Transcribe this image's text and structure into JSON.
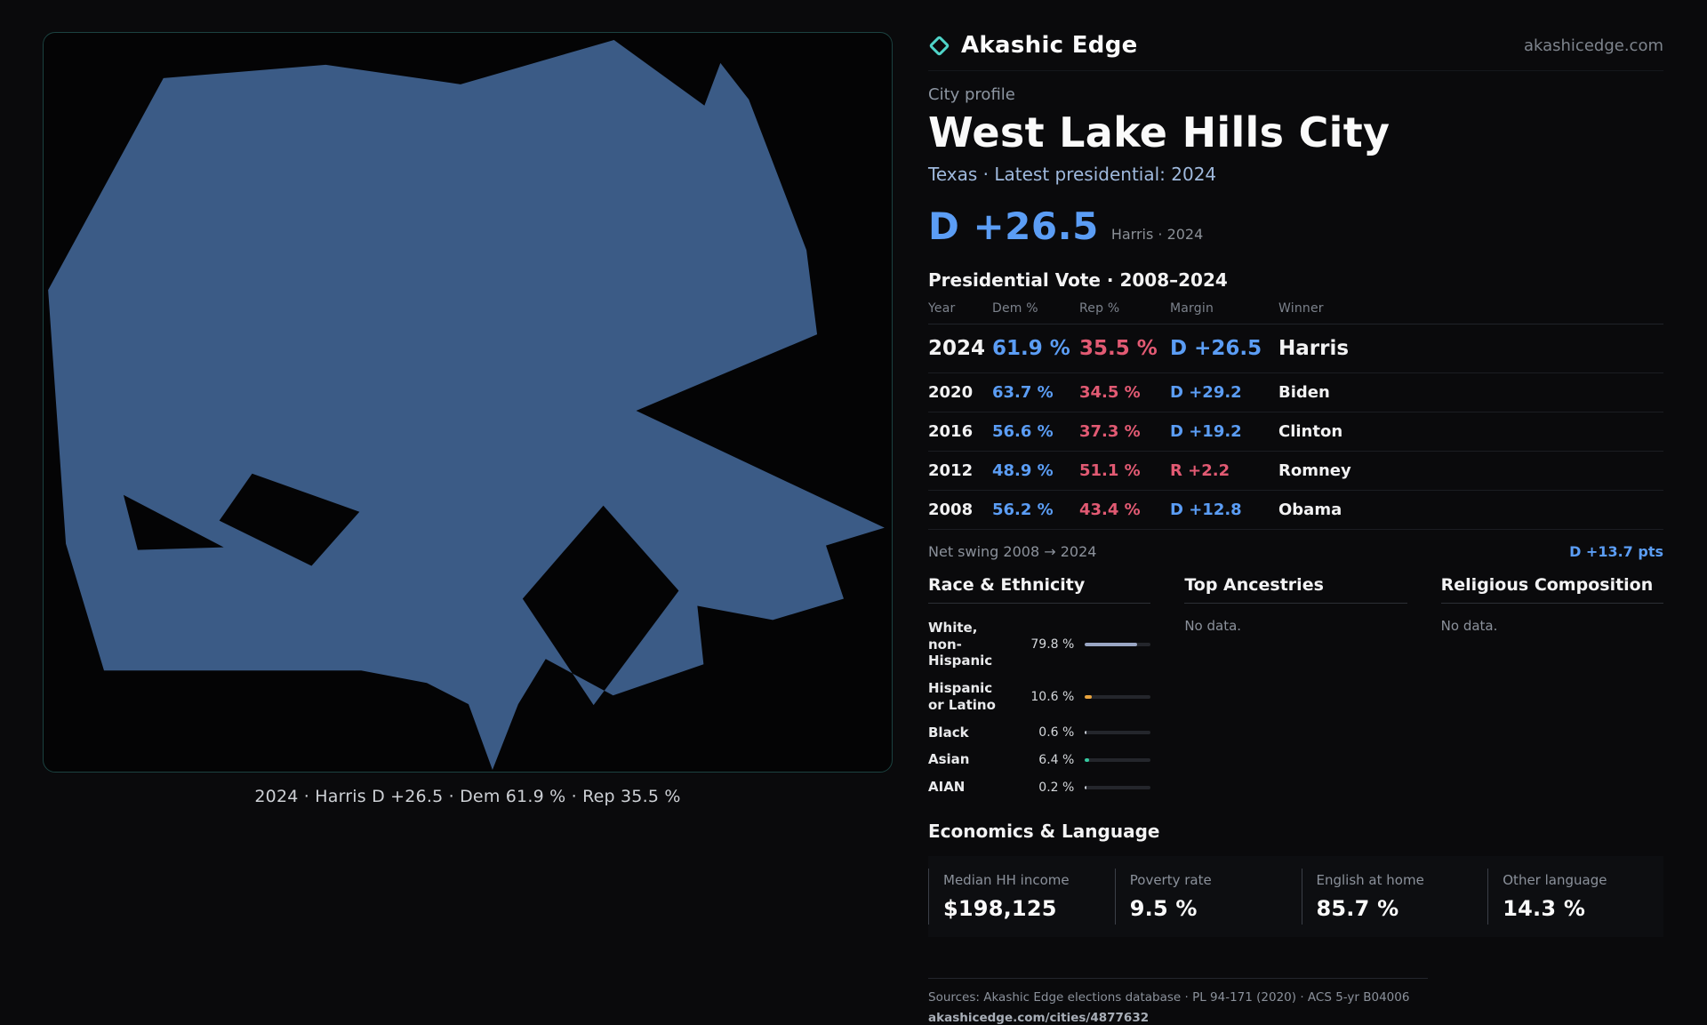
{
  "colors": {
    "dem_blue": "#5b9df5",
    "rep_red": "#e25a73",
    "map_blue": "#3b5b86",
    "accent_teal": "#4fd3c8"
  },
  "header": {
    "brand": "Akashic Edge",
    "domain": "akashicedge.com"
  },
  "map": {
    "caption": "2024 · Harris D +26.5 · Dem 61.9 % · Rep 35.5 %"
  },
  "profile": {
    "label": "City profile",
    "title": "West Lake Hills City",
    "subtitle": "Texas · Latest presidential: 2024",
    "headline_margin": "D +26.5",
    "headline_note": "Harris · 2024",
    "table_title": "Presidential Vote · 2008–2024"
  },
  "vote_table": {
    "columns": [
      "Year",
      "Dem %",
      "Rep %",
      "Margin",
      "Winner"
    ],
    "rows": [
      {
        "year": "2024",
        "dem": "61.9 %",
        "rep": "35.5 %",
        "margin": "D +26.5",
        "winner": "Harris",
        "margin_party": "D"
      },
      {
        "year": "2020",
        "dem": "63.7 %",
        "rep": "34.5 %",
        "margin": "D +29.2",
        "winner": "Biden",
        "margin_party": "D"
      },
      {
        "year": "2016",
        "dem": "56.6 %",
        "rep": "37.3 %",
        "margin": "D +19.2",
        "winner": "Clinton",
        "margin_party": "D"
      },
      {
        "year": "2012",
        "dem": "48.9 %",
        "rep": "51.1 %",
        "margin": "R +2.2",
        "winner": "Romney",
        "margin_party": "R"
      },
      {
        "year": "2008",
        "dem": "56.2 %",
        "rep": "43.4 %",
        "margin": "D +12.8",
        "winner": "Obama",
        "margin_party": "D"
      }
    ]
  },
  "net_swing": {
    "label": "Net swing 2008 → 2024",
    "value": "D +13.7 pts"
  },
  "demographics": {
    "race_title": "Race & Ethnicity",
    "ancestries_title": "Top Ancestries",
    "religion_title": "Religious Composition",
    "no_data": "No data.",
    "race_rows": [
      {
        "label": "White, non-Hispanic",
        "value": "79.8 %",
        "pct": 79.8,
        "color": "#9aa6c4"
      },
      {
        "label": "Hispanic or Latino",
        "value": "10.6 %",
        "pct": 10.6,
        "color": "#e8a33d"
      },
      {
        "label": "Black",
        "value": "0.6 %",
        "pct": 0.6,
        "color": "#c6cbd3"
      },
      {
        "label": "Asian",
        "value": "6.4 %",
        "pct": 6.4,
        "color": "#35c9a0"
      },
      {
        "label": "AIAN",
        "value": "0.2 %",
        "pct": 0.2,
        "color": "#c6cbd3"
      }
    ]
  },
  "economics": {
    "title": "Economics & Language",
    "stats": [
      {
        "label": "Median HH income",
        "value": "$198,125"
      },
      {
        "label": "Poverty rate",
        "value": "9.5 %"
      },
      {
        "label": "English at home",
        "value": "85.7 %"
      },
      {
        "label": "Other language",
        "value": "14.3 %"
      }
    ]
  },
  "footer": {
    "sources": "Sources: Akashic Edge elections database · PL 94-171 (2020) · ACS 5-yr B04006",
    "permalink": "akashicedge.com/cities/4877632"
  }
}
